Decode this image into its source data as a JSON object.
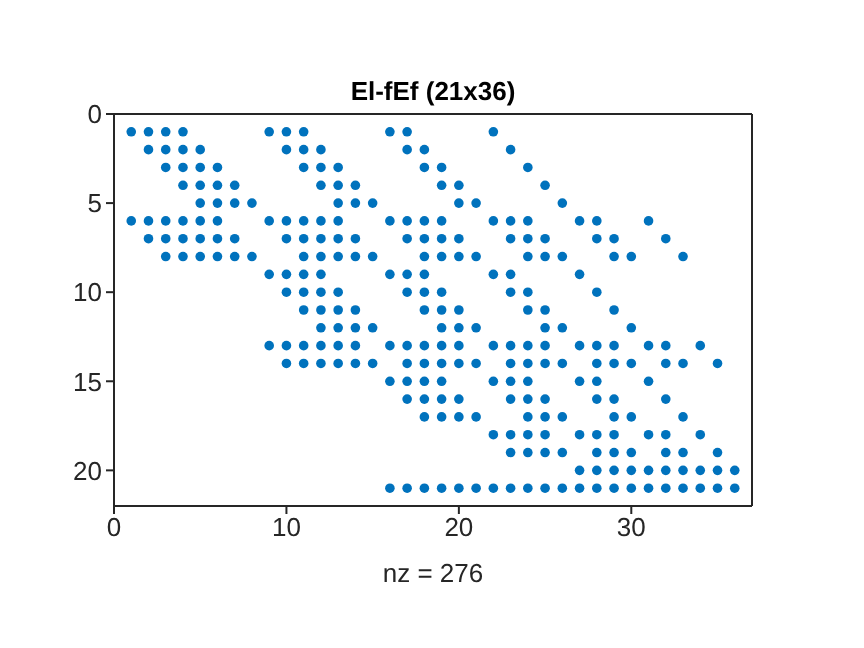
{
  "chart_data": {
    "type": "scatter",
    "title": "El-fEf (21x36)",
    "xlabel": "nz = 276",
    "xlim": [
      0,
      37
    ],
    "ylim": [
      22,
      0
    ],
    "xticks": [
      0,
      10,
      20,
      30
    ],
    "yticks": [
      0,
      5,
      10,
      15,
      20
    ],
    "grid": false,
    "marker": "circle",
    "series": [
      {
        "color": "#0072bd",
        "x": [
          1,
          2,
          3,
          4,
          9,
          10,
          11,
          16,
          17,
          22,
          2,
          3,
          4,
          5,
          10,
          11,
          12,
          17,
          18,
          23,
          3,
          4,
          5,
          6,
          11,
          12,
          13,
          18,
          19,
          24,
          4,
          5,
          6,
          7,
          12,
          13,
          14,
          19,
          20,
          25,
          5,
          6,
          7,
          8,
          13,
          14,
          15,
          20,
          21,
          26,
          1,
          2,
          3,
          4,
          5,
          6,
          9,
          10,
          11,
          12,
          13,
          16,
          17,
          18,
          19,
          22,
          23,
          24,
          27,
          28,
          31,
          2,
          3,
          4,
          5,
          6,
          7,
          10,
          11,
          12,
          13,
          14,
          17,
          18,
          19,
          20,
          23,
          24,
          25,
          28,
          29,
          32,
          3,
          4,
          5,
          6,
          7,
          8,
          11,
          12,
          13,
          14,
          15,
          18,
          19,
          20,
          21,
          24,
          25,
          26,
          29,
          30,
          33,
          9,
          10,
          11,
          12,
          16,
          17,
          18,
          22,
          23,
          27,
          10,
          11,
          12,
          13,
          17,
          18,
          19,
          23,
          24,
          28,
          11,
          12,
          13,
          14,
          18,
          19,
          20,
          24,
          25,
          29,
          12,
          13,
          14,
          15,
          19,
          20,
          21,
          25,
          26,
          30,
          9,
          10,
          11,
          12,
          13,
          14,
          16,
          17,
          18,
          19,
          20,
          22,
          23,
          24,
          25,
          27,
          28,
          29,
          31,
          32,
          34,
          10,
          11,
          12,
          13,
          14,
          15,
          17,
          18,
          19,
          20,
          21,
          23,
          24,
          25,
          26,
          28,
          29,
          30,
          32,
          33,
          35,
          16,
          17,
          18,
          19,
          22,
          23,
          24,
          27,
          28,
          31,
          17,
          18,
          19,
          20,
          23,
          24,
          25,
          28,
          29,
          32,
          18,
          19,
          20,
          21,
          24,
          25,
          26,
          29,
          30,
          33,
          22,
          23,
          24,
          25,
          27,
          28,
          29,
          31,
          32,
          34,
          23,
          24,
          25,
          26,
          28,
          29,
          30,
          32,
          33,
          35,
          27,
          28,
          29,
          30,
          31,
          32,
          33,
          34,
          35,
          36,
          16,
          17,
          18,
          19,
          20,
          21,
          22,
          23,
          24,
          25,
          26,
          27,
          28,
          29,
          30,
          31,
          32,
          33,
          34,
          35,
          36
        ],
        "values": [
          1,
          1,
          1,
          1,
          1,
          1,
          1,
          1,
          1,
          1,
          2,
          2,
          2,
          2,
          2,
          2,
          2,
          2,
          2,
          2,
          3,
          3,
          3,
          3,
          3,
          3,
          3,
          3,
          3,
          3,
          4,
          4,
          4,
          4,
          4,
          4,
          4,
          4,
          4,
          4,
          5,
          5,
          5,
          5,
          5,
          5,
          5,
          5,
          5,
          5,
          6,
          6,
          6,
          6,
          6,
          6,
          6,
          6,
          6,
          6,
          6,
          6,
          6,
          6,
          6,
          6,
          6,
          6,
          6,
          6,
          6,
          7,
          7,
          7,
          7,
          7,
          7,
          7,
          7,
          7,
          7,
          7,
          7,
          7,
          7,
          7,
          7,
          7,
          7,
          7,
          7,
          7,
          8,
          8,
          8,
          8,
          8,
          8,
          8,
          8,
          8,
          8,
          8,
          8,
          8,
          8,
          8,
          8,
          8,
          8,
          8,
          8,
          8,
          9,
          9,
          9,
          9,
          9,
          9,
          9,
          9,
          9,
          9,
          10,
          10,
          10,
          10,
          10,
          10,
          10,
          10,
          10,
          10,
          11,
          11,
          11,
          11,
          11,
          11,
          11,
          11,
          11,
          11,
          12,
          12,
          12,
          12,
          12,
          12,
          12,
          12,
          12,
          12,
          13,
          13,
          13,
          13,
          13,
          13,
          13,
          13,
          13,
          13,
          13,
          13,
          13,
          13,
          13,
          13,
          13,
          13,
          13,
          13,
          13,
          14,
          14,
          14,
          14,
          14,
          14,
          14,
          14,
          14,
          14,
          14,
          14,
          14,
          14,
          14,
          14,
          14,
          14,
          14,
          14,
          14,
          15,
          15,
          15,
          15,
          15,
          15,
          15,
          15,
          15,
          15,
          16,
          16,
          16,
          16,
          16,
          16,
          16,
          16,
          16,
          16,
          17,
          17,
          17,
          17,
          17,
          17,
          17,
          17,
          17,
          17,
          18,
          18,
          18,
          18,
          18,
          18,
          18,
          18,
          18,
          18,
          19,
          19,
          19,
          19,
          19,
          19,
          19,
          19,
          19,
          19,
          20,
          20,
          20,
          20,
          20,
          20,
          20,
          20,
          20,
          20,
          21,
          21,
          21,
          21,
          21,
          21,
          21,
          21,
          21,
          21,
          21,
          21,
          21,
          21,
          21,
          21,
          21,
          21,
          21,
          21,
          21
        ]
      }
    ]
  }
}
